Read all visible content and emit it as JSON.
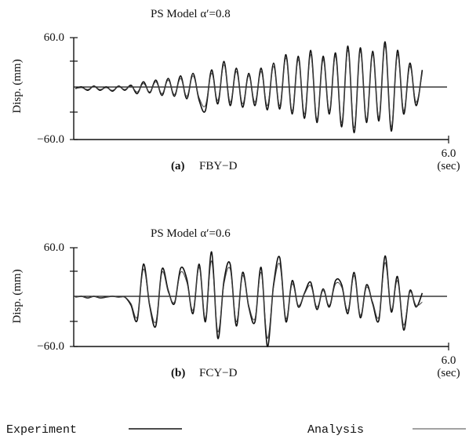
{
  "chart_data": [
    {
      "type": "line",
      "title": "PS Model  α′=0.8",
      "caption_prefix": "(a)",
      "caption": "FBY−D",
      "ylabel": "Disp. (mm)",
      "xlabel": "(sec)",
      "ylim": [
        -60,
        60
      ],
      "xlim": [
        0,
        6
      ],
      "yticks": [
        "60.0",
        "−60.0"
      ],
      "xtick_end": "6.0",
      "series": [
        {
          "name": "Experiment",
          "x": [
            0.0,
            0.1,
            0.2,
            0.3,
            0.4,
            0.5,
            0.6,
            0.7,
            0.8,
            0.9,
            1.0,
            1.1,
            1.2,
            1.3,
            1.4,
            1.5,
            1.6,
            1.7,
            1.8,
            1.9,
            2.0,
            2.1,
            2.2,
            2.3,
            2.4,
            2.5,
            2.6,
            2.7,
            2.8,
            2.9,
            3.0,
            3.1,
            3.2,
            3.3,
            3.4,
            3.5,
            3.6,
            3.7,
            3.8,
            3.9,
            4.0,
            4.1,
            4.2,
            4.3,
            4.4,
            4.5,
            4.6,
            4.7,
            4.8,
            4.9,
            5.0,
            5.1,
            5.2,
            5.3,
            5.4,
            5.5,
            5.6
          ],
          "values": [
            0,
            2,
            -2,
            3,
            -2,
            2,
            -3,
            3,
            -2,
            4,
            -6,
            8,
            -5,
            10,
            -8,
            12,
            -9,
            15,
            -12,
            18,
            -14,
            -26,
            22,
            -18,
            32,
            -20,
            24,
            -22,
            18,
            -20,
            24,
            -25,
            30,
            -24,
            40,
            -30,
            38,
            -35,
            45,
            -40,
            38,
            -30,
            42,
            -45,
            50,
            -52,
            48,
            -40,
            44,
            -38,
            55,
            -50,
            45,
            -30,
            30,
            -20,
            22
          ]
        },
        {
          "name": "Analysis",
          "x": [
            0.0,
            0.1,
            0.2,
            0.3,
            0.4,
            0.5,
            0.6,
            0.7,
            0.8,
            0.9,
            1.0,
            1.1,
            1.2,
            1.3,
            1.4,
            1.5,
            1.6,
            1.7,
            1.8,
            1.9,
            2.0,
            2.1,
            2.2,
            2.3,
            2.4,
            2.5,
            2.6,
            2.7,
            2.8,
            2.9,
            3.0,
            3.1,
            3.2,
            3.3,
            3.4,
            3.5,
            3.6,
            3.7,
            3.8,
            3.9,
            4.0,
            4.1,
            4.2,
            4.3,
            4.4,
            4.5,
            4.6,
            4.7,
            4.8,
            4.9,
            5.0,
            5.1,
            5.2,
            5.3,
            5.4,
            5.5,
            5.6
          ],
          "values": [
            0,
            1,
            -1,
            2,
            -1,
            1,
            -2,
            2,
            -1,
            3,
            -4,
            6,
            -4,
            8,
            -6,
            10,
            -7,
            12,
            -9,
            15,
            -11,
            -20,
            18,
            -14,
            28,
            -16,
            20,
            -18,
            15,
            -16,
            20,
            -20,
            26,
            -20,
            36,
            -26,
            34,
            -30,
            40,
            -36,
            34,
            -26,
            38,
            -40,
            45,
            -46,
            44,
            -36,
            40,
            -34,
            50,
            -45,
            40,
            -26,
            26,
            -16,
            18
          ]
        }
      ]
    },
    {
      "type": "line",
      "title": "PS Model  α′=0.6",
      "caption_prefix": "(b)",
      "caption": "FCY−D",
      "ylabel": "Disp. (mm)",
      "xlabel": "(sec)",
      "ylim": [
        -60,
        60
      ],
      "xlim": [
        0,
        6
      ],
      "yticks": [
        "60.0",
        "−60.0"
      ],
      "xtick_end": "6.0",
      "series": [
        {
          "name": "Experiment",
          "x": [
            0.0,
            0.1,
            0.2,
            0.3,
            0.4,
            0.5,
            0.6,
            0.7,
            0.8,
            0.9,
            1.0,
            1.1,
            1.2,
            1.3,
            1.4,
            1.5,
            1.6,
            1.7,
            1.8,
            1.9,
            2.0,
            2.1,
            2.2,
            2.3,
            2.4,
            2.5,
            2.6,
            2.7,
            2.8,
            2.9,
            3.0,
            3.1,
            3.2,
            3.3,
            3.4,
            3.5,
            3.6,
            3.7,
            3.8,
            3.9,
            4.0,
            4.1,
            4.2,
            4.3,
            4.4,
            4.5,
            4.6,
            4.7,
            4.8,
            4.9,
            5.0,
            5.1,
            5.2,
            5.3,
            5.4,
            5.5,
            5.6
          ],
          "values": [
            0,
            1,
            -1,
            1,
            -1,
            0,
            1,
            0,
            0,
            -10,
            -28,
            40,
            -10,
            -35,
            34,
            8,
            -8,
            35,
            22,
            -20,
            40,
            -30,
            55,
            -50,
            20,
            40,
            -35,
            30,
            -12,
            -30,
            36,
            -60,
            15,
            48,
            -30,
            20,
            -12,
            5,
            18,
            -15,
            10,
            -12,
            20,
            15,
            -20,
            30,
            -25,
            15,
            -8,
            -28,
            50,
            -18,
            25,
            -40,
            8,
            -12,
            5
          ]
        },
        {
          "name": "Analysis",
          "x": [
            0.0,
            0.1,
            0.2,
            0.3,
            0.4,
            0.5,
            0.6,
            0.7,
            0.8,
            0.9,
            1.0,
            1.1,
            1.2,
            1.3,
            1.4,
            1.5,
            1.6,
            1.7,
            1.8,
            1.9,
            2.0,
            2.1,
            2.2,
            2.3,
            2.4,
            2.5,
            2.6,
            2.7,
            2.8,
            2.9,
            3.0,
            3.1,
            3.2,
            3.3,
            3.4,
            3.5,
            3.6,
            3.7,
            3.8,
            3.9,
            4.0,
            4.1,
            4.2,
            4.3,
            4.4,
            4.5,
            4.6,
            4.7,
            4.8,
            4.9,
            5.0,
            5.1,
            5.2,
            5.3,
            5.4,
            5.5,
            5.6
          ],
          "values": [
            0,
            1,
            -1,
            1,
            -1,
            0,
            1,
            0,
            0,
            -8,
            -24,
            34,
            -8,
            -30,
            30,
            6,
            -6,
            30,
            18,
            -16,
            36,
            -26,
            44,
            -42,
            16,
            34,
            -30,
            26,
            -10,
            -26,
            30,
            -50,
            12,
            40,
            -26,
            16,
            -10,
            4,
            14,
            -12,
            8,
            -10,
            16,
            12,
            -16,
            26,
            -22,
            12,
            -6,
            -24,
            42,
            -15,
            20,
            -34,
            6,
            -10,
            -6
          ]
        }
      ]
    }
  ],
  "legend": {
    "experiment_label": "Experiment",
    "analysis_label": "Analysis"
  }
}
